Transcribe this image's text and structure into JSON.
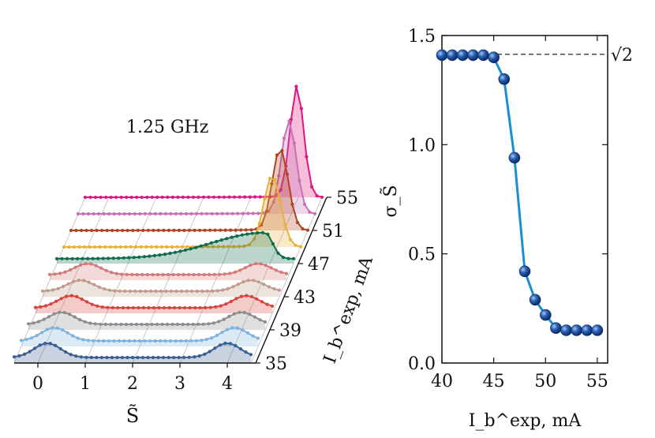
{
  "chart_data": [
    {
      "type": "area",
      "title": "1.25 GHz",
      "xlabel": "S̃",
      "ylabel": "I_b^exp, mA",
      "xlim": [
        -0.5,
        4.6
      ],
      "x_ticks": [
        "0",
        "1",
        "2",
        "3",
        "4"
      ],
      "depth_tick_labels": [
        "35",
        "39",
        "43",
        "47",
        "51",
        "55"
      ],
      "series": [
        {
          "current": 35,
          "color": "#3b5d91",
          "shape": "bimodal",
          "left_peak": 0.2,
          "right_peak": 4.0,
          "peak_height": 0.9
        },
        {
          "current": 37,
          "color": "#7fb2dc",
          "shape": "bimodal",
          "left_peak": 0.2,
          "right_peak": 4.0,
          "peak_height": 0.85
        },
        {
          "current": 39,
          "color": "#8c8c8c",
          "shape": "bimodal",
          "left_peak": 0.2,
          "right_peak": 4.0,
          "peak_height": 0.8
        },
        {
          "current": 41,
          "color": "#d6453d",
          "shape": "bimodal",
          "left_peak": 0.25,
          "right_peak": 3.95,
          "peak_height": 0.8
        },
        {
          "current": 43,
          "color": "#c09a8a",
          "shape": "bimodal",
          "left_peak": 0.3,
          "right_peak": 3.9,
          "peak_height": 0.75
        },
        {
          "current": 45,
          "color": "#d27a7a",
          "shape": "bimodal",
          "left_peak": 0.3,
          "right_peak": 3.9,
          "peak_height": 0.75
        },
        {
          "current": 47,
          "color": "#0f6b4a",
          "shape": "skewed",
          "peak": 3.9,
          "peak_height": 1.4
        },
        {
          "current": 49,
          "color": "#e8b03a",
          "shape": "gaussian",
          "peak": 3.9,
          "peak_height": 3.2
        },
        {
          "current": 51,
          "color": "#b0431f",
          "shape": "gaussian",
          "peak": 3.92,
          "peak_height": 3.7
        },
        {
          "current": 53,
          "color": "#c76fb4",
          "shape": "gaussian",
          "peak": 3.95,
          "peak_height": 4.2
        },
        {
          "current": 55,
          "color": "#e0157f",
          "shape": "gaussian",
          "peak": 3.97,
          "peak_height": 5.0
        }
      ]
    },
    {
      "type": "line",
      "xlabel": "I_b^exp, mA",
      "ylabel": "σ_S̃",
      "xlim": [
        40,
        56
      ],
      "ylim": [
        0.0,
        1.5
      ],
      "x_ticks": [
        "40",
        "45",
        "50",
        "55"
      ],
      "y_ticks": [
        "0.0",
        "0.5",
        "1.0",
        "1.5"
      ],
      "reference_line": {
        "value": 1.414,
        "label": "√2"
      },
      "x": [
        40,
        41,
        42,
        43,
        44,
        45,
        46,
        47,
        48,
        49,
        50,
        51,
        52,
        53,
        54,
        55
      ],
      "y": [
        1.41,
        1.41,
        1.41,
        1.41,
        1.41,
        1.4,
        1.3,
        0.94,
        0.42,
        0.29,
        0.22,
        0.16,
        0.15,
        0.15,
        0.15,
        0.15
      ],
      "line_color": "#1a8fd0",
      "marker_color": "#0d3f8f"
    }
  ]
}
